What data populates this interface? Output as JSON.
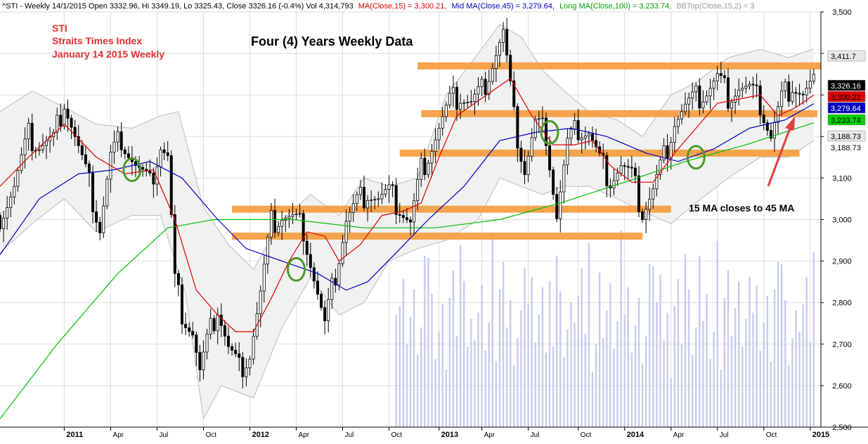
{
  "header": {
    "symbol_info": "^STI - Weekly 14/1/2015 Open 3332.96, Hi 3349.19, Lo 3325.43, Close 3326.16 (-0.4%) Vol 4,314,793",
    "ma15": "MA(Close,15) = 3,300.21,",
    "ma45": "Mid MA(Close,45) = 3,279.64,",
    "ma100": "Long MA(Close,100) = 3,233.74,",
    "bbtop": "BBTop(Close,15,2) = 3"
  },
  "annotations": {
    "line1": "STI",
    "line2": "Straits Times Index",
    "line3": "January 14 2015 Weekly",
    "title": "Four (4) Years Weekly Data",
    "callout": "15 MA closes to 45 MA"
  },
  "colors": {
    "ma15": "#e00000",
    "ma45": "#0000c0",
    "ma100": "#00c000",
    "bands": "#bbbbbb",
    "band_fill": "#f1f1f1",
    "support_resistance": "#f59a3a",
    "circle": "#4a9a2a",
    "arrow": "#e04040",
    "volume": "#c8cbef"
  },
  "chart_data": {
    "type": "candlestick",
    "y_axis": {
      "min": 2500,
      "max": 3500,
      "ticks": [
        "2,500",
        "2,600",
        "2,700",
        "2,800",
        "2,900",
        "3,000",
        "3,100",
        "3,200",
        "3,300",
        "3,400",
        "3,500"
      ]
    },
    "x_axis": {
      "start": "2010-08-30",
      "end": "2015-01-26",
      "labels": [
        {
          "date": "2011-01-03",
          "text": "2011",
          "bold": true
        },
        {
          "date": "2011-04-04",
          "text": "Apr",
          "bold": false
        },
        {
          "date": "2011-07-04",
          "text": "Jul",
          "bold": false
        },
        {
          "date": "2011-10-03",
          "text": "Oct",
          "bold": false
        },
        {
          "date": "2012-01-02",
          "text": "2012",
          "bold": true
        },
        {
          "date": "2012-04-02",
          "text": "Apr",
          "bold": false
        },
        {
          "date": "2012-07-02",
          "text": "Jul",
          "bold": false
        },
        {
          "date": "2012-10-01",
          "text": "Oct",
          "bold": false
        },
        {
          "date": "2013-01-07",
          "text": "2013",
          "bold": true
        },
        {
          "date": "2013-04-01",
          "text": "Apr",
          "bold": false
        },
        {
          "date": "2013-07-01",
          "text": "Jul",
          "bold": false
        },
        {
          "date": "2013-10-07",
          "text": "Oct",
          "bold": false
        },
        {
          "date": "2014-01-06",
          "text": "2014",
          "bold": true
        },
        {
          "date": "2014-04-07",
          "text": "Apr",
          "bold": false
        },
        {
          "date": "2014-07-07",
          "text": "Jul",
          "bold": false
        },
        {
          "date": "2014-10-06",
          "text": "Oct",
          "bold": false
        },
        {
          "date": "2015-01-05",
          "text": "2015",
          "bold": true
        }
      ]
    },
    "right_tags": [
      {
        "text": "3,411.7",
        "value": 3411.7,
        "bg": "#e8e8e8",
        "fg": "#000000"
      },
      {
        "text": "3,326.16",
        "value": 3326.16,
        "bg": "#000000",
        "fg": "#ffffff"
      },
      {
        "text": "3,300.21",
        "value": 3300.21,
        "bg": "#e00000",
        "fg": "#000000"
      },
      {
        "text": "3,279.64",
        "value": 3279.64,
        "bg": "#0000c0",
        "fg": "#ffffff"
      },
      {
        "text": "3,233.74",
        "value": 3233.74,
        "bg": "#00d000",
        "fg": "#000000"
      },
      {
        "text": "3,188.73",
        "value": 3188.73,
        "bg": "#e8e8e8",
        "fg": "#000000"
      },
      {
        "text": "3,188.73",
        "value": 3188.73,
        "bg": "none",
        "fg": "#000000"
      }
    ],
    "support_resistance": [
      {
        "from": "2012-11-26",
        "to": "2015-01-26",
        "level": 3370
      },
      {
        "from": "2012-12-03",
        "to": "2015-01-19",
        "level": 3255
      },
      {
        "from": "2012-10-22",
        "to": "2014-12-15",
        "level": 3160
      },
      {
        "from": "2011-11-28",
        "to": "2014-04-07",
        "level": 3025
      },
      {
        "from": "2011-11-28",
        "to": "2014-02-10",
        "level": 2960
      }
    ],
    "circles": [
      {
        "date": "2011-05-16",
        "value": 3120
      },
      {
        "date": "2012-04-02",
        "value": 2880
      },
      {
        "date": "2013-08-12",
        "value": 3210
      },
      {
        "date": "2014-05-26",
        "value": 3150
      }
    ],
    "ma15_path": [
      [
        "2010-08-30",
        3080
      ],
      [
        "2010-10-25",
        3150
      ],
      [
        "2011-01-03",
        3230
      ],
      [
        "2011-03-07",
        3150
      ],
      [
        "2011-05-02",
        3110
      ],
      [
        "2011-06-27",
        3120
      ],
      [
        "2011-08-08",
        3000
      ],
      [
        "2011-09-19",
        2830
      ],
      [
        "2011-10-31",
        2770
      ],
      [
        "2011-12-05",
        2730
      ],
      [
        "2012-01-09",
        2730
      ],
      [
        "2012-02-13",
        2810
      ],
      [
        "2012-03-19",
        2900
      ],
      [
        "2012-04-23",
        2970
      ],
      [
        "2012-05-28",
        2960
      ],
      [
        "2012-06-25",
        2900
      ],
      [
        "2012-08-06",
        2940
      ],
      [
        "2012-09-17",
        3010
      ],
      [
        "2012-10-29",
        3020
      ],
      [
        "2012-12-03",
        3040
      ],
      [
        "2013-01-07",
        3150
      ],
      [
        "2013-02-11",
        3250
      ],
      [
        "2013-03-18",
        3280
      ],
      [
        "2013-04-22",
        3310
      ],
      [
        "2013-05-27",
        3340
      ],
      [
        "2013-07-08",
        3250
      ],
      [
        "2013-08-19",
        3180
      ],
      [
        "2013-09-30",
        3180
      ],
      [
        "2013-11-04",
        3190
      ],
      [
        "2013-12-09",
        3130
      ],
      [
        "2014-01-20",
        3090
      ],
      [
        "2014-03-03",
        3090
      ],
      [
        "2014-04-14",
        3160
      ],
      [
        "2014-05-26",
        3220
      ],
      [
        "2014-07-07",
        3280
      ],
      [
        "2014-08-18",
        3290
      ],
      [
        "2014-09-29",
        3300
      ],
      [
        "2014-11-03",
        3250
      ],
      [
        "2014-12-08",
        3270
      ],
      [
        "2015-01-12",
        3300
      ]
    ],
    "ma45_path": [
      [
        "2010-08-30",
        2915
      ],
      [
        "2010-11-15",
        3050
      ],
      [
        "2011-01-31",
        3110
      ],
      [
        "2011-04-11",
        3120
      ],
      [
        "2011-06-20",
        3140
      ],
      [
        "2011-08-22",
        3100
      ],
      [
        "2011-10-31",
        3000
      ],
      [
        "2011-12-26",
        2930
      ],
      [
        "2012-03-05",
        2900
      ],
      [
        "2012-05-14",
        2870
      ],
      [
        "2012-07-09",
        2830
      ],
      [
        "2012-08-20",
        2850
      ],
      [
        "2012-10-15",
        2920
      ],
      [
        "2012-12-17",
        3000
      ],
      [
        "2013-02-25",
        3080
      ],
      [
        "2013-05-06",
        3190
      ],
      [
        "2013-07-15",
        3210
      ],
      [
        "2013-09-23",
        3220
      ],
      [
        "2013-12-02",
        3200
      ],
      [
        "2014-02-17",
        3160
      ],
      [
        "2014-04-21",
        3140
      ],
      [
        "2014-06-30",
        3170
      ],
      [
        "2014-09-08",
        3220
      ],
      [
        "2014-11-17",
        3240
      ],
      [
        "2015-01-12",
        3279
      ]
    ],
    "ma100_path": [
      [
        "2010-08-30",
        2520
      ],
      [
        "2010-12-20",
        2700
      ],
      [
        "2011-04-18",
        2870
      ],
      [
        "2011-07-25",
        2980
      ],
      [
        "2011-10-24",
        3000
      ],
      [
        "2012-03-26",
        3000
      ],
      [
        "2012-08-13",
        2980
      ],
      [
        "2012-12-31",
        2980
      ],
      [
        "2013-05-06",
        3000
      ],
      [
        "2013-09-02",
        3040
      ],
      [
        "2014-01-06",
        3090
      ],
      [
        "2014-05-05",
        3140
      ],
      [
        "2014-09-01",
        3180
      ],
      [
        "2015-01-12",
        3233
      ]
    ],
    "bb_upper": [
      [
        "2010-08-30",
        3260
      ],
      [
        "2010-11-01",
        3310
      ],
      [
        "2011-01-03",
        3270
      ],
      [
        "2011-03-07",
        3230
      ],
      [
        "2011-05-16",
        3220
      ],
      [
        "2011-07-11",
        3250
      ],
      [
        "2011-08-15",
        3260
      ],
      [
        "2011-10-03",
        3030
      ],
      [
        "2011-11-21",
        2940
      ],
      [
        "2012-01-09",
        2880
      ],
      [
        "2012-03-05",
        3000
      ],
      [
        "2012-04-30",
        3060
      ],
      [
        "2012-06-25",
        3010
      ],
      [
        "2012-08-13",
        3100
      ],
      [
        "2012-10-01",
        3080
      ],
      [
        "2012-11-26",
        3100
      ],
      [
        "2013-01-21",
        3300
      ],
      [
        "2013-03-25",
        3400
      ],
      [
        "2013-05-06",
        3470
      ],
      [
        "2013-06-17",
        3440
      ],
      [
        "2013-07-29",
        3360
      ],
      [
        "2013-09-09",
        3310
      ],
      [
        "2013-10-28",
        3260
      ],
      [
        "2013-12-23",
        3240
      ],
      [
        "2014-02-10",
        3200
      ],
      [
        "2014-04-07",
        3300
      ],
      [
        "2014-05-26",
        3330
      ],
      [
        "2014-07-28",
        3390
      ],
      [
        "2014-09-29",
        3410
      ],
      [
        "2014-11-24",
        3390
      ],
      [
        "2015-01-12",
        3411
      ]
    ],
    "bb_lower": [
      [
        "2010-08-30",
        2920
      ],
      [
        "2010-11-01",
        2990
      ],
      [
        "2011-01-03",
        3050
      ],
      [
        "2011-03-07",
        2970
      ],
      [
        "2011-05-16",
        3010
      ],
      [
        "2011-07-11",
        3010
      ],
      [
        "2011-08-29",
        2820
      ],
      [
        "2011-10-03",
        2520
      ],
      [
        "2011-11-07",
        2600
      ],
      [
        "2012-01-09",
        2570
      ],
      [
        "2012-03-05",
        2740
      ],
      [
        "2012-04-30",
        2860
      ],
      [
        "2012-06-25",
        2770
      ],
      [
        "2012-08-13",
        2800
      ],
      [
        "2012-10-01",
        2900
      ],
      [
        "2012-11-26",
        2930
      ],
      [
        "2013-01-21",
        2950
      ],
      [
        "2013-03-25",
        3000
      ],
      [
        "2013-05-06",
        3100
      ],
      [
        "2013-06-17",
        3080
      ],
      [
        "2013-07-29",
        3060
      ],
      [
        "2013-09-09",
        3080
      ],
      [
        "2013-10-28",
        3080
      ],
      [
        "2013-12-23",
        3050
      ],
      [
        "2014-02-10",
        3020
      ],
      [
        "2014-04-07",
        2990
      ],
      [
        "2014-05-26",
        3040
      ],
      [
        "2014-07-28",
        3100
      ],
      [
        "2014-09-29",
        3150
      ],
      [
        "2014-11-24",
        3150
      ],
      [
        "2015-01-12",
        3190
      ]
    ],
    "close_path": [
      [
        "2010-08-30",
        3010
      ],
      [
        "2010-09-27",
        3080
      ],
      [
        "2010-10-25",
        3200
      ],
      [
        "2010-11-15",
        3180
      ],
      [
        "2010-12-13",
        3190
      ],
      [
        "2011-01-03",
        3290
      ],
      [
        "2011-01-24",
        3200
      ],
      [
        "2011-02-21",
        3080
      ],
      [
        "2011-03-14",
        2980
      ],
      [
        "2011-04-04",
        3150
      ],
      [
        "2011-04-25",
        3200
      ],
      [
        "2011-05-23",
        3130
      ],
      [
        "2011-06-20",
        3080
      ],
      [
        "2011-07-11",
        3180
      ],
      [
        "2011-07-25",
        3150
      ],
      [
        "2011-08-08",
        2850
      ],
      [
        "2011-08-22",
        2780
      ],
      [
        "2011-09-12",
        2730
      ],
      [
        "2011-09-26",
        2630
      ],
      [
        "2011-10-10",
        2700
      ],
      [
        "2011-10-31",
        2790
      ],
      [
        "2011-11-21",
        2690
      ],
      [
        "2011-12-12",
        2640
      ],
      [
        "2012-01-02",
        2680
      ],
      [
        "2012-01-23",
        2820
      ],
      [
        "2012-02-13",
        2990
      ],
      [
        "2012-03-05",
        3010
      ],
      [
        "2012-03-26",
        3000
      ],
      [
        "2012-04-16",
        2980
      ],
      [
        "2012-05-07",
        2860
      ],
      [
        "2012-05-28",
        2740
      ],
      [
        "2012-06-18",
        2870
      ],
      [
        "2012-07-09",
        3000
      ],
      [
        "2012-07-30",
        3040
      ],
      [
        "2012-08-20",
        3070
      ],
      [
        "2012-09-10",
        3050
      ],
      [
        "2012-10-01",
        3060
      ],
      [
        "2012-10-22",
        3030
      ],
      [
        "2012-11-12",
        2990
      ],
      [
        "2012-12-03",
        3120
      ],
      [
        "2013-01-07",
        3220
      ],
      [
        "2013-01-28",
        3280
      ],
      [
        "2013-02-18",
        3300
      ],
      [
        "2013-03-11",
        3280
      ],
      [
        "2013-04-01",
        3310
      ],
      [
        "2013-04-22",
        3380
      ],
      [
        "2013-05-13",
        3450
      ],
      [
        "2013-06-03",
        3240
      ],
      [
        "2013-06-24",
        3120
      ],
      [
        "2013-07-15",
        3230
      ],
      [
        "2013-08-05",
        3210
      ],
      [
        "2013-08-26",
        3010
      ],
      [
        "2013-09-16",
        3180
      ],
      [
        "2013-10-07",
        3220
      ],
      [
        "2013-10-28",
        3210
      ],
      [
        "2013-11-18",
        3140
      ],
      [
        "2013-12-09",
        3100
      ],
      [
        "2013-12-30",
        3130
      ],
      [
        "2014-01-20",
        3100
      ],
      [
        "2014-02-10",
        3020
      ],
      [
        "2014-03-03",
        3070
      ],
      [
        "2014-03-24",
        3150
      ],
      [
        "2014-04-14",
        3240
      ],
      [
        "2014-05-05",
        3270
      ],
      [
        "2014-05-26",
        3290
      ],
      [
        "2014-06-16",
        3310
      ],
      [
        "2014-07-07",
        3340
      ],
      [
        "2014-07-28",
        3300
      ],
      [
        "2014-08-18",
        3320
      ],
      [
        "2014-09-08",
        3310
      ],
      [
        "2014-09-29",
        3280
      ],
      [
        "2014-10-20",
        3200
      ],
      [
        "2014-11-10",
        3290
      ],
      [
        "2014-12-01",
        3330
      ],
      [
        "2014-12-22",
        3300
      ],
      [
        "2015-01-12",
        3326
      ]
    ]
  }
}
